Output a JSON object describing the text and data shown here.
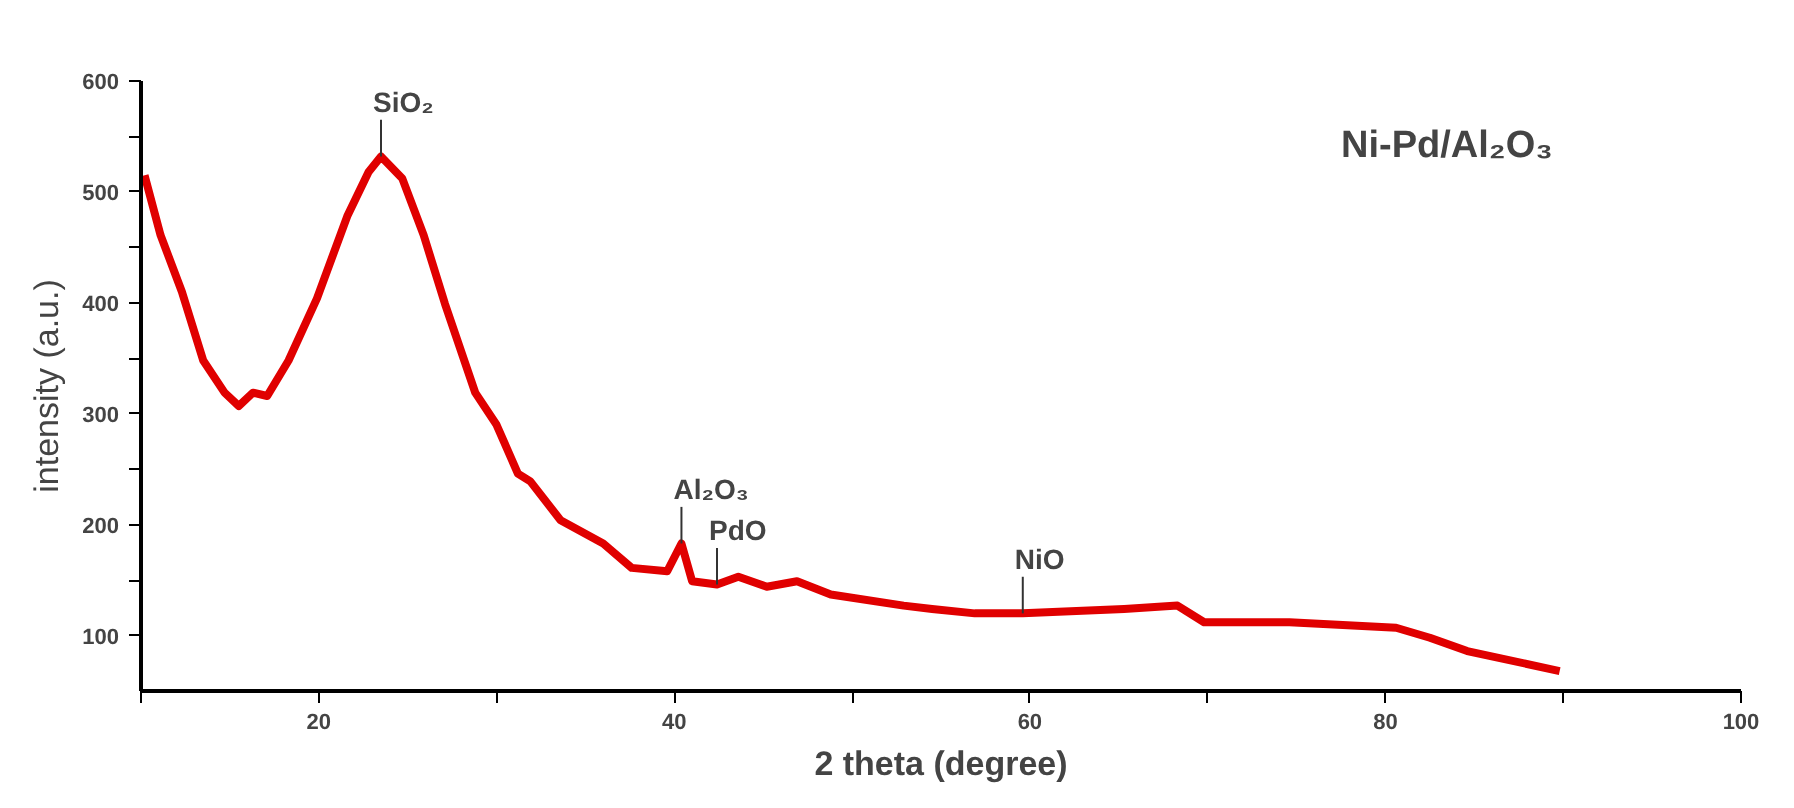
{
  "chart_data": {
    "type": "line",
    "title": "Ni-Pd/Al₂O₃",
    "xlabel": "2 theta (degree)",
    "ylabel": "intensity (a.u.)",
    "x": [
      10.2,
      11.1,
      12.3,
      13.5,
      14.7,
      15.5,
      16.3,
      17.1,
      18.3,
      19.9,
      21.6,
      22.8,
      23.5,
      24.7,
      25.9,
      27.1,
      28.8,
      30.0,
      31.2,
      31.9,
      33.6,
      36.0,
      37.6,
      39.6,
      40.4,
      41.0,
      42.4,
      43.6,
      45.2,
      46.9,
      48.8,
      52.9,
      54.5,
      56.9,
      59.6,
      65.3,
      68.3,
      69.8,
      74.6,
      80.6,
      82.5,
      84.6,
      89.8
    ],
    "series": [
      {
        "color": "#e00000",
        "values": [
          515,
          461,
          410,
          348,
          319,
          307,
          319,
          316,
          348,
          404,
          478,
          518,
          532,
          512,
          461,
          399,
          319,
          290,
          246,
          239,
          204,
          183,
          161,
          158,
          183,
          149,
          146,
          153,
          144,
          149,
          137,
          127,
          124,
          120,
          120,
          124,
          127,
          112,
          112,
          107,
          98,
          86,
          68
        ]
      }
    ],
    "xlim": [
      10,
      100
    ],
    "ylim": [
      50,
      600
    ],
    "xticks": [
      {
        "value": 10,
        "label": null
      },
      20,
      {
        "value": 30,
        "label": null
      },
      40,
      {
        "value": 50,
        "label": null
      },
      60,
      {
        "value": 70,
        "label": null
      },
      80,
      {
        "value": 90,
        "label": null
      },
      100
    ],
    "yticks": [
      100,
      {
        "value": 150,
        "label": null
      },
      200,
      {
        "value": 250,
        "label": null
      },
      300,
      {
        "value": 350,
        "label": null
      },
      400,
      {
        "value": 450,
        "label": null
      },
      500,
      {
        "value": 550,
        "label": null
      },
      600
    ],
    "annotations": [
      {
        "text": "SiO₂",
        "x": 23.5,
        "y": 532
      },
      {
        "text": "Al₂O₃",
        "x": 40.4,
        "y": 183
      },
      {
        "text": "PdO",
        "x": 42.4,
        "y": 146
      },
      {
        "text": "NiO",
        "x": 59.6,
        "y": 120
      }
    ],
    "grid": false,
    "marker": "none",
    "line_style": "solid"
  }
}
